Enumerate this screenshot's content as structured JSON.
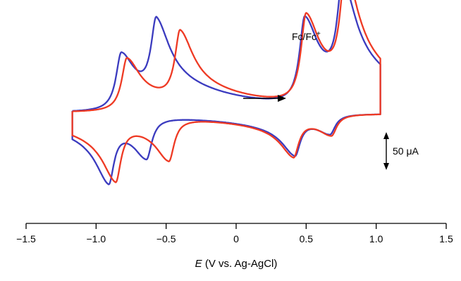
{
  "chart_data": {
    "type": "line",
    "title": "",
    "xlabel_var": "E",
    "xlabel_rest": " (V vs. Ag-AgCl)",
    "ylabel": "",
    "xlim": [
      -1.5,
      1.5
    ],
    "x_ticks": [
      -1.5,
      -1.0,
      -0.5,
      0,
      0.5,
      1.0,
      1.5
    ],
    "x_tick_labels": [
      "−1.5",
      "−1.0",
      "−0.5",
      "0",
      "0.5",
      "1.0",
      "1.5"
    ],
    "y_axis_shown": false,
    "grid": false,
    "legend": "none",
    "annotations": {
      "reference_couple": "Fc/Fc",
      "reference_couple_sup": "+",
      "scale_bar_label": "50 μA",
      "scale_bar_value_uA": 50,
      "sweep_direction": "positive"
    },
    "series": [
      {
        "color": "#3b3bbf",
        "forward_peaks": [
          {
            "E": -0.82,
            "i_uA": 82
          },
          {
            "E": -0.57,
            "i_uA": 109
          },
          {
            "E": 0.49,
            "i_uA": 124
          },
          {
            "E": 0.76,
            "i_uA": 148
          }
        ],
        "reverse_peaks": [
          {
            "E": -0.91,
            "i_uA": -80
          },
          {
            "E": -0.64,
            "i_uA": -59
          },
          {
            "E": 0.42,
            "i_uA": -51
          },
          {
            "E": 0.67,
            "i_uA": -28
          }
        ],
        "window": [
          -1.17,
          1.03
        ]
      },
      {
        "color": "#ee3a24",
        "forward_peaks": [
          {
            "E": -0.78,
            "i_uA": 76
          },
          {
            "E": -0.4,
            "i_uA": 100
          },
          {
            "E": 0.5,
            "i_uA": 127
          },
          {
            "E": 0.78,
            "i_uA": 159
          }
        ],
        "reverse_peaks": [
          {
            "E": -0.86,
            "i_uA": -81
          },
          {
            "E": -0.48,
            "i_uA": -61
          },
          {
            "E": 0.41,
            "i_uA": -53
          },
          {
            "E": 0.68,
            "i_uA": -30
          }
        ],
        "window": [
          -1.17,
          1.03
        ]
      }
    ]
  }
}
